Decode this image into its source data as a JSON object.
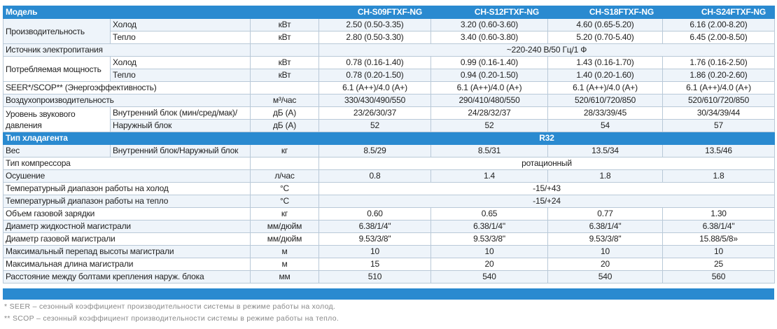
{
  "table": {
    "header": {
      "label": "Модель",
      "models": [
        "CH-S09FTXF-NG",
        "CH-S12FTXF-NG",
        "CH-S18FTXF-NG",
        "CH-S24FTXF-NG"
      ]
    },
    "rows": [
      {
        "label": "Производительность",
        "subrows": [
          {
            "sub": "Холод",
            "unit": "кВт",
            "values": [
              "2.50 (0.50-3.35)",
              "3.20 (0.60-3.60)",
              "4.60 (0.65-5.20)",
              "6.16 (2.00-8.20)"
            ]
          },
          {
            "sub": "Тепло",
            "unit": "кВт",
            "values": [
              "2.80 (0.50-3.30)",
              "3.40 (0.60-3.80)",
              "5.20 (0.70-5.40)",
              "6.45 (2.00-8.50)"
            ]
          }
        ]
      },
      {
        "label": "Источник электропитания",
        "value": "~220-240 В/50 Гц/1 Ф"
      },
      {
        "label": "Потребляемая мощность",
        "subrows": [
          {
            "sub": "Холод",
            "unit": "кВт",
            "values": [
              "0.78 (0.16-1.40)",
              "0.99 (0.16-1.40)",
              "1.43 (0.16-1.70)",
              "1.76 (0.16-2.50)"
            ]
          },
          {
            "sub": "Тепло",
            "unit": "кВт",
            "values": [
              "0.78 (0.20-1.50)",
              "0.94 (0.20-1.50)",
              "1.40 (0.20-1.60)",
              "1.86 (0.20-2.60)"
            ]
          }
        ]
      },
      {
        "label": "SEER*/SCOP** (Энергоэффективность)",
        "values": [
          "6.1 (A++)/4.0 (A+)",
          "6.1 (A++)/4.0 (A+)",
          "6.1 (A++)/4.0 (A+)",
          "6.1 (A++)/4.0 (A+)"
        ]
      },
      {
        "label": "Воздухопроизводительность",
        "unit": "м³/час",
        "values": [
          "330/430/490/550",
          "290/410/480/550",
          "520/610/720/850",
          "520/610/720/850"
        ]
      },
      {
        "label": "Уровень звукового давления",
        "subrows": [
          {
            "sub": "Внутренний блок (мин/сред/мак)/",
            "unit": "дБ (А)",
            "values": [
              "23/26/30/37",
              "24/28/32/37",
              "28/33/39/45",
              "30/34/39/44"
            ]
          },
          {
            "sub": "Наружный блок",
            "unit": "дБ (А)",
            "values": [
              "52",
              "52",
              "54",
              "57"
            ]
          }
        ]
      },
      {
        "section": "Тип хладагента",
        "value": "R32"
      },
      {
        "label": "Вес",
        "sub": "Внутренний блок/Наружный блок",
        "unit": "кг",
        "values": [
          "8.5/29",
          "8.5/31",
          "13.5/34",
          "13.5/46"
        ]
      },
      {
        "label": "Тип компрессора",
        "value": "ротационный"
      },
      {
        "label": "Осушение",
        "unit": "л/час",
        "values": [
          "0.8",
          "1.4",
          "1.8",
          "1.8"
        ]
      },
      {
        "label": "Температурный диапазон работы на холод",
        "unit": "°C",
        "value": "-15/+43"
      },
      {
        "label": "Температурный диапазон работы на тепло",
        "unit": "°C",
        "value": "-15/+24"
      },
      {
        "label": "Объем газовой зарядки",
        "unit": "кг",
        "values": [
          "0.60",
          "0.65",
          "0.77",
          "1.30"
        ]
      },
      {
        "label": "Диаметр жидкостной магистрали",
        "unit": "мм/дюйм",
        "values": [
          "6.38/1/4\"",
          "6.38/1/4\"",
          "6.38/1/4\"",
          "6.38/1/4\""
        ]
      },
      {
        "label": "Диаметр газовой магистрали",
        "unit": "мм/дюйм",
        "values": [
          "9.53/3/8\"",
          "9.53/3/8\"",
          "9.53/3/8\"",
          "15.88/5/8»"
        ]
      },
      {
        "label": "Максимальный перепад высоты магистрали",
        "unit": "м",
        "values": [
          "10",
          "10",
          "10",
          "10"
        ]
      },
      {
        "label": "Максимальная длина магистрали",
        "unit": "м",
        "values": [
          "15",
          "20",
          "20",
          "25"
        ]
      },
      {
        "label": "Расстояние между болтами крепления наруж. блока",
        "unit": "мм",
        "values": [
          "510",
          "540",
          "540",
          "560"
        ]
      }
    ]
  },
  "footnotes": [
    "* SEER – сезонный коэффициент производительности системы в режиме работы на холод.",
    "** SCOP – сезонный коэффициент производительности системы в режиме работы на тепло."
  ]
}
